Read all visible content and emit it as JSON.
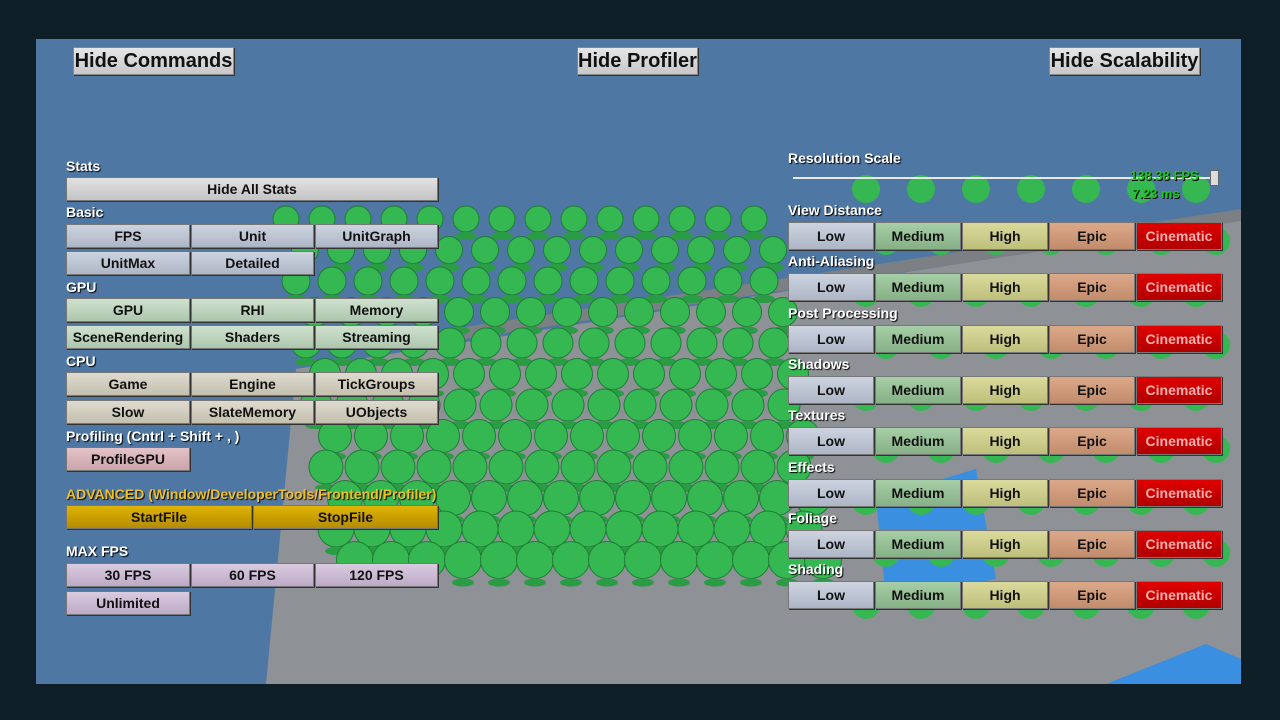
{
  "header": {
    "hide_commands": "Hide Commands",
    "hide_profiler": "Hide Profiler",
    "hide_scalability": "Hide Scalability"
  },
  "stats": {
    "label": "Stats",
    "hide_all": "Hide All Stats"
  },
  "basic": {
    "label": "Basic",
    "buttons": [
      "FPS",
      "Unit",
      "UnitGraph",
      "UnitMax",
      "Detailed"
    ]
  },
  "gpu": {
    "label": "GPU",
    "buttons": [
      "GPU",
      "RHI",
      "Memory",
      "SceneRendering",
      "Shaders",
      "Streaming"
    ]
  },
  "cpu": {
    "label": "CPU",
    "buttons": [
      "Game",
      "Engine",
      "TickGroups",
      "Slow",
      "SlateMemory",
      "UObjects"
    ]
  },
  "profiling": {
    "label": "Profiling (Cntrl + Shift + , )",
    "buttons": [
      "ProfileGPU"
    ]
  },
  "advanced": {
    "label": "ADVANCED (Window/DeveloperTools/Frontend/Profiler)",
    "buttons": [
      "StartFile",
      "StopFile"
    ]
  },
  "max_fps": {
    "label": "MAX FPS",
    "buttons": [
      "30 FPS",
      "60 FPS",
      "120 FPS",
      "Unlimited"
    ]
  },
  "resolution": {
    "label": "Resolution Scale",
    "value": 1.0,
    "fps_text": "138.38 FPS",
    "ms_text": "7.23 ms"
  },
  "quality_levels": [
    "Low",
    "Medium",
    "High",
    "Epic",
    "Cinematic"
  ],
  "scalability_groups": [
    "View Distance",
    "Anti-Aliasing",
    "Post Processing",
    "Shadows",
    "Textures",
    "Effects",
    "Foliage",
    "Shading"
  ],
  "colors": {
    "viewport_bg": "#4f77a3",
    "floor": "#8e9196",
    "spheres": "#35b852",
    "advanced_label": "#f0c020",
    "fps_text": "#1ec81e"
  }
}
